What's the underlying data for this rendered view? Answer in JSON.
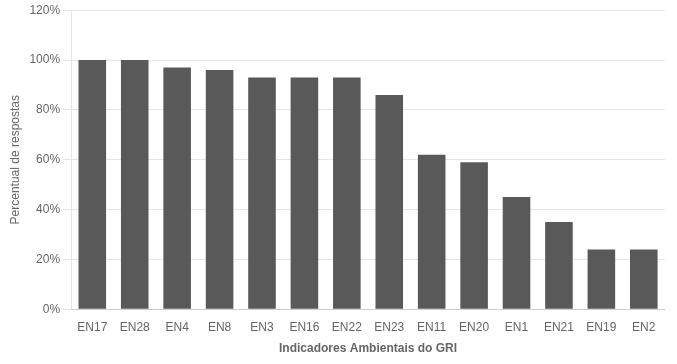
{
  "chart_data": {
    "type": "bar",
    "categories": [
      "EN17",
      "EN28",
      "EN4",
      "EN8",
      "EN3",
      "EN16",
      "EN22",
      "EN23",
      "EN11",
      "EN20",
      "EN1",
      "EN21",
      "EN19",
      "EN2"
    ],
    "values": [
      1.0,
      1.0,
      0.97,
      0.96,
      0.93,
      0.93,
      0.93,
      0.86,
      0.62,
      0.59,
      0.45,
      0.35,
      0.24,
      0.24
    ],
    "color": "#595959",
    "xlabel": "Indicadores Ambientais do GRI",
    "ylabel": "Percentual de respostas",
    "ylim": [
      0,
      1.2
    ],
    "yticks": [
      {
        "value": 0.0,
        "label": "0%"
      },
      {
        "value": 0.2,
        "label": "20%"
      },
      {
        "value": 0.4,
        "label": "40%"
      },
      {
        "value": 0.6,
        "label": "60%"
      },
      {
        "value": 0.8,
        "label": "80%"
      },
      {
        "value": 1.0,
        "label": "100%"
      },
      {
        "value": 1.2,
        "label": "120%"
      }
    ],
    "grid": true
  }
}
